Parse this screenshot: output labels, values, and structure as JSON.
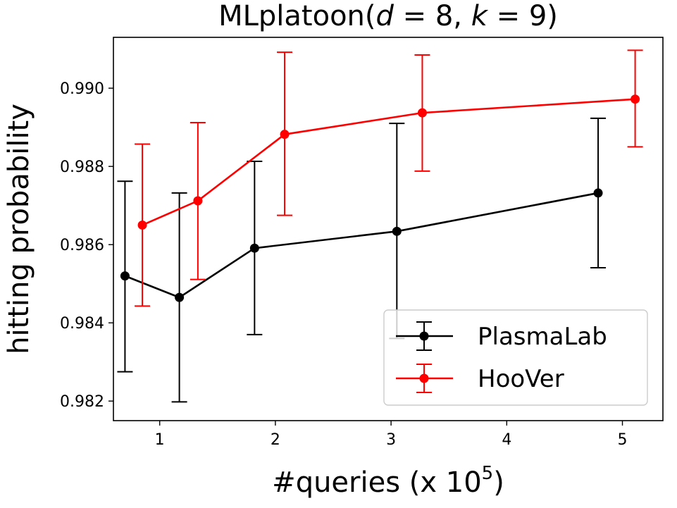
{
  "chart_data": {
    "type": "line",
    "title": "MLplatoon(d = 8, k = 9)",
    "title_parts": {
      "prefix": "MLplatoon(",
      "d": "d",
      "eq1": " = 8, ",
      "k": "k",
      "eq2": " = 9)"
    },
    "xlabel": "#queries (x 10",
    "xlabel_sup": "5",
    "xlabel_end": ")",
    "ylabel": "hitting probability",
    "xlim": [
      0.6,
      5.35
    ],
    "ylim": [
      0.9815,
      0.9913
    ],
    "xticks": [
      1,
      2,
      3,
      4,
      5
    ],
    "xtick_labels": [
      "1",
      "2",
      "3",
      "4",
      "5"
    ],
    "yticks": [
      0.982,
      0.984,
      0.986,
      0.988,
      0.99
    ],
    "ytick_labels": [
      "0.982",
      "0.984",
      "0.986",
      "0.988",
      "0.990"
    ],
    "grid": false,
    "legend_position": "lower-right",
    "series": [
      {
        "name": "PlasmaLab",
        "color": "#000000",
        "points": [
          {
            "x": 0.7,
            "y": 0.9852,
            "err_low": 0.98275,
            "err_high": 0.98762
          },
          {
            "x": 1.17,
            "y": 0.98465,
            "err_low": 0.98198,
            "err_high": 0.98732
          },
          {
            "x": 1.82,
            "y": 0.98591,
            "err_low": 0.9837,
            "err_high": 0.98813
          },
          {
            "x": 3.05,
            "y": 0.98634,
            "err_low": 0.9836,
            "err_high": 0.9891
          },
          {
            "x": 4.79,
            "y": 0.98732,
            "err_low": 0.98541,
            "err_high": 0.98923
          }
        ]
      },
      {
        "name": "HooVer",
        "color": "#ff0000",
        "points": [
          {
            "x": 0.85,
            "y": 0.9865,
            "err_low": 0.98443,
            "err_high": 0.98857
          },
          {
            "x": 1.33,
            "y": 0.98712,
            "err_low": 0.98511,
            "err_high": 0.98912
          },
          {
            "x": 2.08,
            "y": 0.98882,
            "err_low": 0.98675,
            "err_high": 0.99092
          },
          {
            "x": 3.27,
            "y": 0.98937,
            "err_low": 0.98788,
            "err_high": 0.99085
          },
          {
            "x": 5.11,
            "y": 0.98972,
            "err_low": 0.9885,
            "err_high": 0.99097
          }
        ]
      }
    ]
  }
}
